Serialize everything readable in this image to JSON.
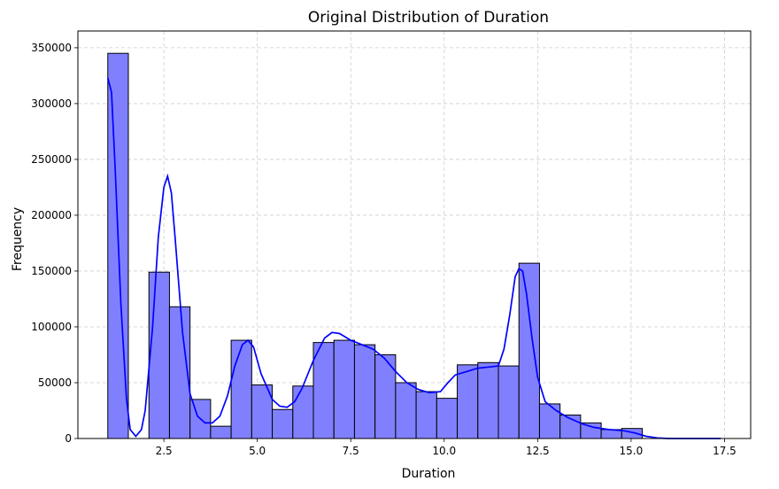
{
  "chart_data": {
    "type": "bar",
    "title": "Original Distribution of Duration",
    "xlabel": "Duration",
    "ylabel": "Frequency",
    "xlim": [
      0.2,
      18.2
    ],
    "ylim": [
      0,
      365000
    ],
    "grid": true,
    "x_ticks": [
      2.5,
      5.0,
      7.5,
      10.0,
      12.5,
      15.0,
      17.5
    ],
    "x_tick_labels": [
      "2.5",
      "5.0",
      "7.5",
      "10.0",
      "12.5",
      "15.0",
      "17.5"
    ],
    "y_ticks": [
      0,
      50000,
      100000,
      150000,
      200000,
      250000,
      300000,
      350000
    ],
    "y_tick_labels": [
      "0",
      "50000",
      "100000",
      "150000",
      "200000",
      "250000",
      "300000",
      "350000"
    ],
    "bar_color": "#8080ff",
    "bar_edge_color": "#000000",
    "kde_color": "#0000ff",
    "bins": [
      {
        "start": 1.0,
        "end": 1.55,
        "count": 345000
      },
      {
        "start": 1.55,
        "end": 2.1,
        "count": 0
      },
      {
        "start": 2.1,
        "end": 2.65,
        "count": 149000
      },
      {
        "start": 2.65,
        "end": 3.2,
        "count": 118000
      },
      {
        "start": 3.2,
        "end": 3.75,
        "count": 35000
      },
      {
        "start": 3.75,
        "end": 4.3,
        "count": 11000
      },
      {
        "start": 4.3,
        "end": 4.85,
        "count": 88000
      },
      {
        "start": 4.85,
        "end": 5.4,
        "count": 48000
      },
      {
        "start": 5.4,
        "end": 5.95,
        "count": 26000
      },
      {
        "start": 5.95,
        "end": 6.5,
        "count": 47000
      },
      {
        "start": 6.5,
        "end": 7.05,
        "count": 86000
      },
      {
        "start": 7.05,
        "end": 7.6,
        "count": 88000
      },
      {
        "start": 7.6,
        "end": 8.15,
        "count": 84000
      },
      {
        "start": 8.15,
        "end": 8.7,
        "count": 75000
      },
      {
        "start": 8.7,
        "end": 9.25,
        "count": 50000
      },
      {
        "start": 9.25,
        "end": 9.8,
        "count": 42000
      },
      {
        "start": 9.8,
        "end": 10.35,
        "count": 36000
      },
      {
        "start": 10.35,
        "end": 10.9,
        "count": 66000
      },
      {
        "start": 10.9,
        "end": 11.45,
        "count": 68000
      },
      {
        "start": 11.45,
        "end": 12.0,
        "count": 65000
      },
      {
        "start": 12.0,
        "end": 12.55,
        "count": 157000
      },
      {
        "start": 12.55,
        "end": 13.1,
        "count": 31000
      },
      {
        "start": 13.1,
        "end": 13.65,
        "count": 21000
      },
      {
        "start": 13.65,
        "end": 14.2,
        "count": 14000
      },
      {
        "start": 14.2,
        "end": 14.75,
        "count": 8000
      },
      {
        "start": 14.75,
        "end": 15.3,
        "count": 9000
      }
    ],
    "kde": [
      [
        1.0,
        323000
      ],
      [
        1.1,
        310000
      ],
      [
        1.2,
        240000
      ],
      [
        1.35,
        120000
      ],
      [
        1.5,
        35000
      ],
      [
        1.6,
        8000
      ],
      [
        1.75,
        2000
      ],
      [
        1.9,
        8000
      ],
      [
        2.0,
        25000
      ],
      [
        2.2,
        100000
      ],
      [
        2.35,
        180000
      ],
      [
        2.5,
        225000
      ],
      [
        2.6,
        235000
      ],
      [
        2.7,
        220000
      ],
      [
        2.8,
        180000
      ],
      [
        3.0,
        95000
      ],
      [
        3.2,
        40000
      ],
      [
        3.4,
        20000
      ],
      [
        3.6,
        14000
      ],
      [
        3.8,
        14000
      ],
      [
        4.0,
        20000
      ],
      [
        4.2,
        38000
      ],
      [
        4.4,
        65000
      ],
      [
        4.6,
        84000
      ],
      [
        4.75,
        88000
      ],
      [
        4.9,
        82000
      ],
      [
        5.1,
        58000
      ],
      [
        5.4,
        35000
      ],
      [
        5.6,
        29000
      ],
      [
        5.8,
        28000
      ],
      [
        6.0,
        33000
      ],
      [
        6.2,
        45000
      ],
      [
        6.5,
        70000
      ],
      [
        6.8,
        90000
      ],
      [
        7.0,
        95000
      ],
      [
        7.2,
        94000
      ],
      [
        7.5,
        88000
      ],
      [
        7.8,
        84000
      ],
      [
        8.1,
        80000
      ],
      [
        8.4,
        72000
      ],
      [
        8.7,
        60000
      ],
      [
        9.0,
        50000
      ],
      [
        9.3,
        44000
      ],
      [
        9.6,
        41000
      ],
      [
        9.9,
        42000
      ],
      [
        10.1,
        50000
      ],
      [
        10.3,
        57000
      ],
      [
        10.6,
        60000
      ],
      [
        10.9,
        63000
      ],
      [
        11.2,
        64000
      ],
      [
        11.45,
        65000
      ],
      [
        11.6,
        80000
      ],
      [
        11.75,
        110000
      ],
      [
        11.9,
        145000
      ],
      [
        12.0,
        152000
      ],
      [
        12.1,
        150000
      ],
      [
        12.2,
        130000
      ],
      [
        12.35,
        90000
      ],
      [
        12.5,
        55000
      ],
      [
        12.7,
        33000
      ],
      [
        13.0,
        25000
      ],
      [
        13.3,
        19000
      ],
      [
        13.7,
        13000
      ],
      [
        14.0,
        10000
      ],
      [
        14.4,
        8000
      ],
      [
        14.8,
        7000
      ],
      [
        15.1,
        5000
      ],
      [
        15.4,
        2000
      ],
      [
        15.7,
        500
      ],
      [
        16.0,
        0
      ],
      [
        17.4,
        0
      ]
    ]
  }
}
